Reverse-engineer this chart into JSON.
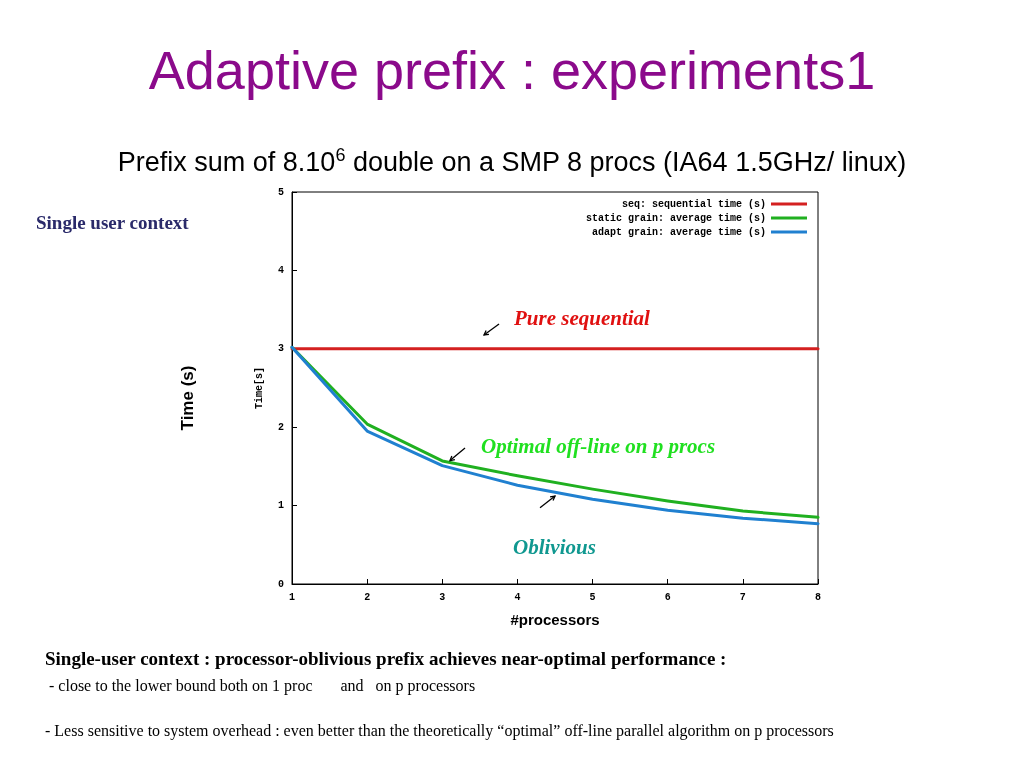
{
  "chart_data": {
    "type": "line",
    "title": "Adaptive prefix : experiments1",
    "subtitle": "Prefix sum of 8.10$^{6}$ double on a SMP 8 procs (IA64 1.5GHz/ linux)",
    "xlabel": "#processors",
    "ylabel": "Time[s]",
    "x": [
      1,
      2,
      3,
      4,
      5,
      6,
      7,
      8
    ],
    "series": [
      {
        "name": "seq: sequential time (s)",
        "color": "#d42020",
        "values": [
          3,
          3,
          3,
          3,
          3,
          3,
          3,
          3
        ]
      },
      {
        "name": "static grain: average time (s)",
        "color": "#20b020",
        "values": [
          3.02,
          2.04,
          1.57,
          1.38,
          1.21,
          1.06,
          0.93,
          0.85
        ]
      },
      {
        "name": "adapt grain: average time (s)",
        "color": "#2080d0",
        "values": [
          3.02,
          1.95,
          1.51,
          1.26,
          1.08,
          0.94,
          0.84,
          0.77
        ]
      }
    ],
    "xlim": [
      1,
      8
    ],
    "xticks": [
      1,
      2,
      3,
      4,
      5,
      6,
      7,
      8
    ],
    "ylim": [
      0,
      5
    ],
    "yticks": [
      0,
      1,
      2,
      3,
      4,
      5
    ],
    "legend": "top right",
    "grid": false,
    "marker": "none",
    "line_style": "solid",
    "annotations": [
      "Single user context",
      "Time (s)",
      "Pure sequential",
      "Optimal off-line on p procs",
      "Oblivious",
      "Single-user context : processor-oblivious prefix  achieves near-optimal performance :",
      " - close to the lower bound both on 1 proc       and   on p processors",
      "- Less sensitive to system overhead : even better than the theoretically “optimal” off-line parallel algorithm on p processors"
    ]
  }
}
